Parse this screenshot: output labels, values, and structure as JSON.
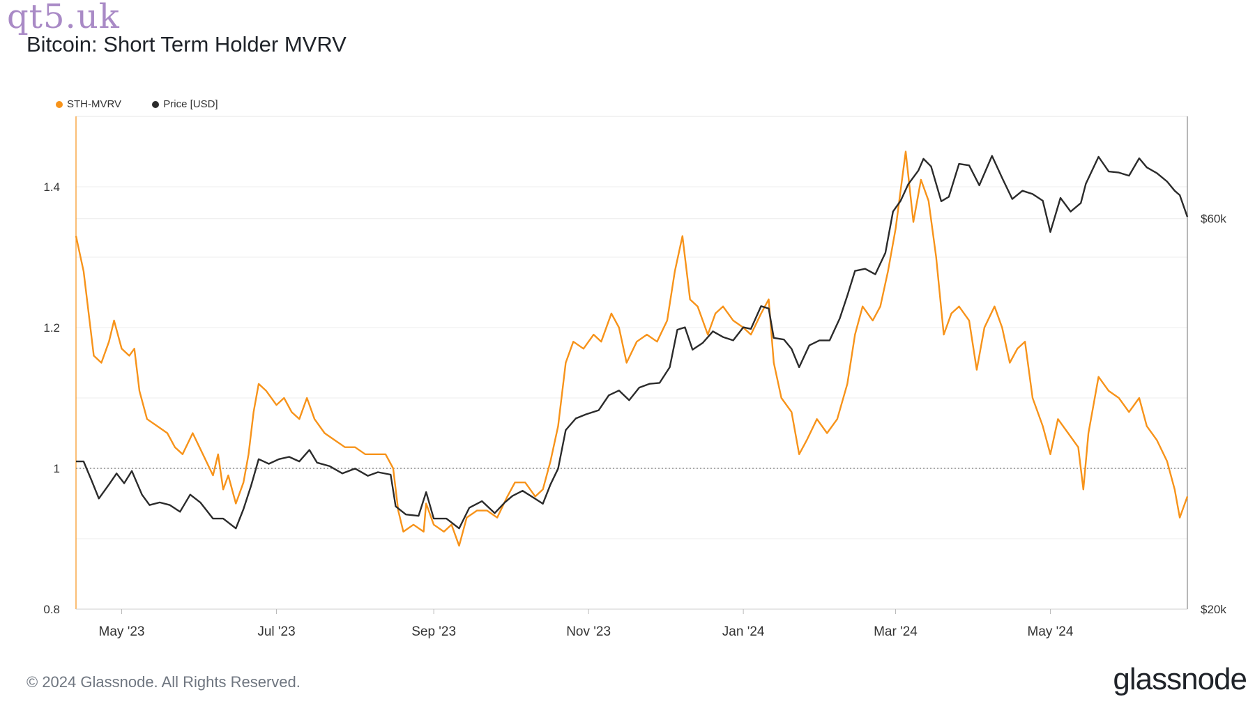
{
  "watermark": "qt5.uk",
  "footer": {
    "copyright": "© 2024 Glassnode. All Rights Reserved.",
    "brand": "glassnode"
  },
  "chart_data": {
    "type": "line",
    "title": "Bitcoin: Short Term Holder MVRV",
    "legend": {
      "placement": "top-left",
      "entries": [
        "STH-MVRV",
        "Price [USD]"
      ]
    },
    "grid": true,
    "x_ticks": [
      "May '23",
      "Jul '23",
      "Sep '23",
      "Nov '23",
      "Jan '24",
      "Mar '24",
      "May '24"
    ],
    "x_range": [
      "2023-04-13",
      "2024-06-24"
    ],
    "y_left": {
      "ticks": [
        "0.8",
        "1",
        "1.2",
        "1.4"
      ],
      "range": [
        0.8,
        1.5
      ]
    },
    "y_right": {
      "ticks": [
        "$20k",
        "$60k"
      ],
      "scale": "log",
      "range": [
        20000,
        80000
      ]
    },
    "reference_line": {
      "y": 1.0,
      "style": "dotted"
    },
    "colors": {
      "mvrv": "#f7931a",
      "price": "#2b2b2b"
    },
    "series": [
      {
        "name": "STH-MVRV",
        "axis": "left",
        "points": [
          [
            "2023-04-13",
            1.33
          ],
          [
            "2023-04-16",
            1.28
          ],
          [
            "2023-04-18",
            1.22
          ],
          [
            "2023-04-20",
            1.16
          ],
          [
            "2023-04-23",
            1.15
          ],
          [
            "2023-04-26",
            1.18
          ],
          [
            "2023-04-28",
            1.21
          ],
          [
            "2023-05-01",
            1.17
          ],
          [
            "2023-05-04",
            1.16
          ],
          [
            "2023-05-06",
            1.17
          ],
          [
            "2023-05-08",
            1.11
          ],
          [
            "2023-05-11",
            1.07
          ],
          [
            "2023-05-15",
            1.06
          ],
          [
            "2023-05-19",
            1.05
          ],
          [
            "2023-05-22",
            1.03
          ],
          [
            "2023-05-25",
            1.02
          ],
          [
            "2023-05-29",
            1.05
          ],
          [
            "2023-06-02",
            1.02
          ],
          [
            "2023-06-06",
            0.99
          ],
          [
            "2023-06-08",
            1.02
          ],
          [
            "2023-06-10",
            0.97
          ],
          [
            "2023-06-12",
            0.99
          ],
          [
            "2023-06-15",
            0.95
          ],
          [
            "2023-06-18",
            0.98
          ],
          [
            "2023-06-20",
            1.02
          ],
          [
            "2023-06-22",
            1.08
          ],
          [
            "2023-06-24",
            1.12
          ],
          [
            "2023-06-27",
            1.11
          ],
          [
            "2023-07-01",
            1.09
          ],
          [
            "2023-07-04",
            1.1
          ],
          [
            "2023-07-07",
            1.08
          ],
          [
            "2023-07-10",
            1.07
          ],
          [
            "2023-07-13",
            1.1
          ],
          [
            "2023-07-16",
            1.07
          ],
          [
            "2023-07-20",
            1.05
          ],
          [
            "2023-07-24",
            1.04
          ],
          [
            "2023-07-28",
            1.03
          ],
          [
            "2023-08-01",
            1.03
          ],
          [
            "2023-08-05",
            1.02
          ],
          [
            "2023-08-09",
            1.02
          ],
          [
            "2023-08-13",
            1.02
          ],
          [
            "2023-08-16",
            1.0
          ],
          [
            "2023-08-18",
            0.94
          ],
          [
            "2023-08-20",
            0.91
          ],
          [
            "2023-08-24",
            0.92
          ],
          [
            "2023-08-28",
            0.91
          ],
          [
            "2023-08-29",
            0.95
          ],
          [
            "2023-09-01",
            0.92
          ],
          [
            "2023-09-05",
            0.91
          ],
          [
            "2023-09-08",
            0.92
          ],
          [
            "2023-09-11",
            0.89
          ],
          [
            "2023-09-14",
            0.93
          ],
          [
            "2023-09-18",
            0.94
          ],
          [
            "2023-09-22",
            0.94
          ],
          [
            "2023-09-26",
            0.93
          ],
          [
            "2023-09-30",
            0.96
          ],
          [
            "2023-10-03",
            0.98
          ],
          [
            "2023-10-07",
            0.98
          ],
          [
            "2023-10-11",
            0.96
          ],
          [
            "2023-10-14",
            0.97
          ],
          [
            "2023-10-17",
            1.01
          ],
          [
            "2023-10-20",
            1.06
          ],
          [
            "2023-10-23",
            1.15
          ],
          [
            "2023-10-26",
            1.18
          ],
          [
            "2023-10-30",
            1.17
          ],
          [
            "2023-11-03",
            1.19
          ],
          [
            "2023-11-06",
            1.18
          ],
          [
            "2023-11-10",
            1.22
          ],
          [
            "2023-11-13",
            1.2
          ],
          [
            "2023-11-16",
            1.15
          ],
          [
            "2023-11-20",
            1.18
          ],
          [
            "2023-11-24",
            1.19
          ],
          [
            "2023-11-28",
            1.18
          ],
          [
            "2023-12-02",
            1.21
          ],
          [
            "2023-12-05",
            1.28
          ],
          [
            "2023-12-08",
            1.33
          ],
          [
            "2023-12-11",
            1.24
          ],
          [
            "2023-12-14",
            1.23
          ],
          [
            "2023-12-18",
            1.19
          ],
          [
            "2023-12-21",
            1.22
          ],
          [
            "2023-12-24",
            1.23
          ],
          [
            "2023-12-28",
            1.21
          ],
          [
            "2024-01-01",
            1.2
          ],
          [
            "2024-01-04",
            1.19
          ],
          [
            "2024-01-08",
            1.22
          ],
          [
            "2024-01-11",
            1.24
          ],
          [
            "2024-01-13",
            1.15
          ],
          [
            "2024-01-16",
            1.1
          ],
          [
            "2024-01-20",
            1.08
          ],
          [
            "2024-01-23",
            1.02
          ],
          [
            "2024-01-26",
            1.04
          ],
          [
            "2024-01-30",
            1.07
          ],
          [
            "2024-02-03",
            1.05
          ],
          [
            "2024-02-07",
            1.07
          ],
          [
            "2024-02-11",
            1.12
          ],
          [
            "2024-02-14",
            1.19
          ],
          [
            "2024-02-17",
            1.23
          ],
          [
            "2024-02-21",
            1.21
          ],
          [
            "2024-02-24",
            1.23
          ],
          [
            "2024-02-27",
            1.28
          ],
          [
            "2024-03-01",
            1.34
          ],
          [
            "2024-03-05",
            1.45
          ],
          [
            "2024-03-08",
            1.35
          ],
          [
            "2024-03-11",
            1.41
          ],
          [
            "2024-03-14",
            1.38
          ],
          [
            "2024-03-17",
            1.3
          ],
          [
            "2024-03-20",
            1.19
          ],
          [
            "2024-03-23",
            1.22
          ],
          [
            "2024-03-26",
            1.23
          ],
          [
            "2024-03-30",
            1.21
          ],
          [
            "2024-04-02",
            1.14
          ],
          [
            "2024-04-05",
            1.2
          ],
          [
            "2024-04-09",
            1.23
          ],
          [
            "2024-04-12",
            1.2
          ],
          [
            "2024-04-15",
            1.15
          ],
          [
            "2024-04-18",
            1.17
          ],
          [
            "2024-04-21",
            1.18
          ],
          [
            "2024-04-24",
            1.1
          ],
          [
            "2024-04-28",
            1.06
          ],
          [
            "2024-05-01",
            1.02
          ],
          [
            "2024-05-04",
            1.07
          ],
          [
            "2024-05-08",
            1.05
          ],
          [
            "2024-05-12",
            1.03
          ],
          [
            "2024-05-14",
            0.97
          ],
          [
            "2024-05-16",
            1.05
          ],
          [
            "2024-05-20",
            1.13
          ],
          [
            "2024-05-24",
            1.11
          ],
          [
            "2024-05-28",
            1.1
          ],
          [
            "2024-06-01",
            1.08
          ],
          [
            "2024-06-05",
            1.1
          ],
          [
            "2024-06-08",
            1.06
          ],
          [
            "2024-06-12",
            1.04
          ],
          [
            "2024-06-16",
            1.01
          ],
          [
            "2024-06-19",
            0.97
          ],
          [
            "2024-06-21",
            0.93
          ],
          [
            "2024-06-23",
            0.95
          ],
          [
            "2024-06-24",
            0.96
          ]
        ]
      },
      {
        "name": "Price [USD]",
        "axis": "right",
        "points": [
          [
            "2023-04-13",
            30300
          ],
          [
            "2023-04-16",
            30300
          ],
          [
            "2023-04-19",
            28800
          ],
          [
            "2023-04-22",
            27300
          ],
          [
            "2023-04-26",
            28400
          ],
          [
            "2023-04-29",
            29300
          ],
          [
            "2023-05-02",
            28500
          ],
          [
            "2023-05-05",
            29500
          ],
          [
            "2023-05-09",
            27600
          ],
          [
            "2023-05-12",
            26800
          ],
          [
            "2023-05-16",
            27000
          ],
          [
            "2023-05-20",
            26800
          ],
          [
            "2023-05-24",
            26300
          ],
          [
            "2023-05-28",
            27600
          ],
          [
            "2023-06-01",
            27000
          ],
          [
            "2023-06-06",
            25800
          ],
          [
            "2023-06-10",
            25800
          ],
          [
            "2023-06-15",
            25100
          ],
          [
            "2023-06-18",
            26500
          ],
          [
            "2023-06-21",
            28300
          ],
          [
            "2023-06-24",
            30500
          ],
          [
            "2023-06-28",
            30100
          ],
          [
            "2023-07-02",
            30500
          ],
          [
            "2023-07-06",
            30700
          ],
          [
            "2023-07-10",
            30300
          ],
          [
            "2023-07-14",
            31300
          ],
          [
            "2023-07-17",
            30200
          ],
          [
            "2023-07-22",
            29900
          ],
          [
            "2023-07-27",
            29300
          ],
          [
            "2023-08-01",
            29700
          ],
          [
            "2023-08-06",
            29100
          ],
          [
            "2023-08-10",
            29400
          ],
          [
            "2023-08-15",
            29200
          ],
          [
            "2023-08-17",
            26700
          ],
          [
            "2023-08-21",
            26100
          ],
          [
            "2023-08-26",
            26000
          ],
          [
            "2023-08-29",
            27800
          ],
          [
            "2023-09-01",
            25800
          ],
          [
            "2023-09-06",
            25800
          ],
          [
            "2023-09-11",
            25100
          ],
          [
            "2023-09-15",
            26600
          ],
          [
            "2023-09-20",
            27100
          ],
          [
            "2023-09-25",
            26200
          ],
          [
            "2023-09-29",
            27000
          ],
          [
            "2023-10-02",
            27500
          ],
          [
            "2023-10-06",
            27900
          ],
          [
            "2023-10-10",
            27400
          ],
          [
            "2023-10-14",
            26900
          ],
          [
            "2023-10-17",
            28400
          ],
          [
            "2023-10-20",
            29700
          ],
          [
            "2023-10-23",
            33100
          ],
          [
            "2023-10-27",
            34200
          ],
          [
            "2023-10-31",
            34600
          ],
          [
            "2023-11-05",
            35000
          ],
          [
            "2023-11-09",
            36500
          ],
          [
            "2023-11-13",
            37000
          ],
          [
            "2023-11-17",
            36000
          ],
          [
            "2023-11-21",
            37300
          ],
          [
            "2023-11-25",
            37700
          ],
          [
            "2023-11-29",
            37800
          ],
          [
            "2023-12-03",
            39500
          ],
          [
            "2023-12-06",
            43900
          ],
          [
            "2023-12-09",
            44200
          ],
          [
            "2023-12-12",
            41500
          ],
          [
            "2023-12-16",
            42300
          ],
          [
            "2023-12-20",
            43700
          ],
          [
            "2023-12-24",
            43000
          ],
          [
            "2023-12-28",
            42600
          ],
          [
            "2024-01-01",
            44200
          ],
          [
            "2024-01-04",
            44000
          ],
          [
            "2024-01-08",
            46900
          ],
          [
            "2024-01-11",
            46600
          ],
          [
            "2024-01-13",
            42900
          ],
          [
            "2024-01-17",
            42700
          ],
          [
            "2024-01-20",
            41600
          ],
          [
            "2024-01-23",
            39500
          ],
          [
            "2024-01-27",
            42000
          ],
          [
            "2024-01-31",
            42600
          ],
          [
            "2024-02-04",
            42600
          ],
          [
            "2024-02-08",
            45300
          ],
          [
            "2024-02-11",
            48300
          ],
          [
            "2024-02-14",
            51800
          ],
          [
            "2024-02-18",
            52100
          ],
          [
            "2024-02-22",
            51300
          ],
          [
            "2024-02-26",
            54500
          ],
          [
            "2024-02-29",
            61200
          ],
          [
            "2024-03-03",
            63100
          ],
          [
            "2024-03-06",
            66100
          ],
          [
            "2024-03-10",
            68700
          ],
          [
            "2024-03-12",
            71000
          ],
          [
            "2024-03-15",
            69500
          ],
          [
            "2024-03-19",
            63000
          ],
          [
            "2024-03-22",
            63800
          ],
          [
            "2024-03-26",
            70000
          ],
          [
            "2024-03-30",
            69700
          ],
          [
            "2024-04-03",
            65900
          ],
          [
            "2024-04-08",
            71600
          ],
          [
            "2024-04-12",
            67300
          ],
          [
            "2024-04-16",
            63400
          ],
          [
            "2024-04-20",
            64900
          ],
          [
            "2024-04-24",
            64300
          ],
          [
            "2024-04-28",
            63100
          ],
          [
            "2024-05-01",
            57800
          ],
          [
            "2024-05-05",
            63600
          ],
          [
            "2024-05-09",
            61200
          ],
          [
            "2024-05-13",
            62700
          ],
          [
            "2024-05-15",
            66200
          ],
          [
            "2024-05-20",
            71400
          ],
          [
            "2024-05-24",
            68500
          ],
          [
            "2024-05-28",
            68300
          ],
          [
            "2024-06-01",
            67700
          ],
          [
            "2024-06-05",
            71100
          ],
          [
            "2024-06-08",
            69300
          ],
          [
            "2024-06-12",
            68200
          ],
          [
            "2024-06-16",
            66600
          ],
          [
            "2024-06-19",
            64900
          ],
          [
            "2024-06-21",
            64100
          ],
          [
            "2024-06-24",
            60300
          ]
        ]
      }
    ]
  }
}
